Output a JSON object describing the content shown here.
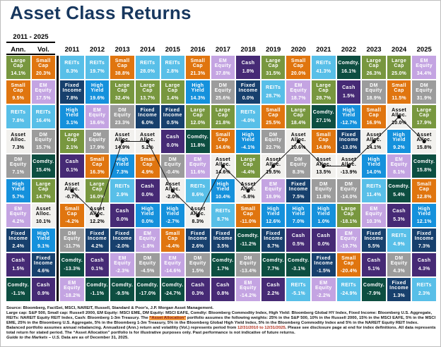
{
  "title": "Asset Class Returns",
  "chart_data": {
    "type": "table",
    "subtype": "asset-return-quilt",
    "period_header": "2011 - 2025",
    "columns": [
      "Ann.",
      "Vol.",
      "2011",
      "2012",
      "2013",
      "2014",
      "2015",
      "2016",
      "2017",
      "2018",
      "2019",
      "2020",
      "2021",
      "2022",
      "2023",
      "2024",
      "2025"
    ],
    "asset_colors": {
      "Large Cap": "#78973f",
      "Small Cap": "#e0750f",
      "REITs": "#58bfe8",
      "High Yield": "#1591dc",
      "EM Equity": "#c4a4e2",
      "DM Equity": "#9c9c9c",
      "Fixed Income": "#17406d",
      "Cash": "#462a75",
      "Comdty.": "#0d4e41",
      "Asset Alloc.": "#f2f1ee"
    },
    "asset_label_lines": {
      "Large Cap": [
        "Large",
        "Cap"
      ],
      "Small Cap": [
        "Small",
        "Cap"
      ],
      "REITs": [
        "REITs"
      ],
      "High Yield": [
        "High",
        "Yield"
      ],
      "EM Equity": [
        "EM",
        "Equity"
      ],
      "DM Equity": [
        "DM",
        "Equity"
      ],
      "Fixed Income": [
        "Fixed",
        "Income"
      ],
      "Cash": [
        "Cash"
      ],
      "Comdty.": [
        "Comdty."
      ],
      "Asset Alloc.": [
        "Asset",
        "Alloc."
      ]
    },
    "cells": [
      {
        "column": "Ann.",
        "entries": [
          {
            "asset": "Large Cap",
            "value": "14.1%"
          },
          {
            "asset": "Small Cap",
            "value": "9.5%"
          },
          {
            "asset": "REITs",
            "value": "7.8%"
          },
          {
            "asset": "Asset Alloc.",
            "value": "7.3%"
          },
          {
            "asset": "DM Equity",
            "value": "7.1%"
          },
          {
            "asset": "High Yield",
            "value": "5.7%"
          },
          {
            "asset": "EM Equity",
            "value": "4.2%"
          },
          {
            "asset": "Fixed Income",
            "value": "2.4%"
          },
          {
            "asset": "Cash",
            "value": "1.5%"
          },
          {
            "asset": "Comdty.",
            "value": "-1.1%"
          }
        ]
      },
      {
        "column": "Vol.",
        "entries": [
          {
            "asset": "Small Cap",
            "value": "20.3%"
          },
          {
            "asset": "EM Equity",
            "value": "17.5%"
          },
          {
            "asset": "REITs",
            "value": "16.4%"
          },
          {
            "asset": "DM Equity",
            "value": "15.7%"
          },
          {
            "asset": "Comdty.",
            "value": "15.4%"
          },
          {
            "asset": "Large Cap",
            "value": "14.7%"
          },
          {
            "asset": "Asset Alloc.",
            "value": "10.1%"
          },
          {
            "asset": "High Yield",
            "value": "9.1%"
          },
          {
            "asset": "Fixed Income",
            "value": "4.6%"
          },
          {
            "asset": "Cash",
            "value": "0.9%"
          }
        ]
      },
      {
        "column": "2011",
        "entries": [
          {
            "asset": "REITs",
            "value": "8.3%"
          },
          {
            "asset": "Fixed Income",
            "value": "7.8%"
          },
          {
            "asset": "High Yield",
            "value": "3.1%"
          },
          {
            "asset": "Large Cap",
            "value": "2.1%"
          },
          {
            "asset": "Cash",
            "value": "0.1%"
          },
          {
            "asset": "Asset Alloc.",
            "value": "-0.7%"
          },
          {
            "asset": "Small Cap",
            "value": "-4.2%"
          },
          {
            "asset": "DM Equity",
            "value": "-11.7%"
          },
          {
            "asset": "Comdty.",
            "value": "-13.3%"
          },
          {
            "asset": "EM Equity",
            "value": "-18.2%"
          }
        ]
      },
      {
        "column": "2012",
        "entries": [
          {
            "asset": "REITs",
            "value": "19.7%"
          },
          {
            "asset": "High Yield",
            "value": "19.6%"
          },
          {
            "asset": "EM Equity",
            "value": "18.6%"
          },
          {
            "asset": "DM Equity",
            "value": "17.9%"
          },
          {
            "asset": "Small Cap",
            "value": "16.3%"
          },
          {
            "asset": "Large Cap",
            "value": "16.0%"
          },
          {
            "asset": "Asset Alloc.",
            "value": "12.2%"
          },
          {
            "asset": "Fixed Income",
            "value": "4.2%"
          },
          {
            "asset": "Cash",
            "value": "0.1%"
          },
          {
            "asset": "Comdty.",
            "value": "-1.1%"
          }
        ]
      },
      {
        "column": "2013",
        "entries": [
          {
            "asset": "Small Cap",
            "value": "38.8%"
          },
          {
            "asset": "Large Cap",
            "value": "32.4%"
          },
          {
            "asset": "DM Equity",
            "value": "23.3%"
          },
          {
            "asset": "Asset Alloc.",
            "value": "14.9%"
          },
          {
            "asset": "High Yield",
            "value": "7.3%"
          },
          {
            "asset": "REITs",
            "value": "2.9%"
          },
          {
            "asset": "Cash",
            "value": "0.0%"
          },
          {
            "asset": "Fixed Income",
            "value": "-2.0%"
          },
          {
            "asset": "EM Equity",
            "value": "-2.3%"
          },
          {
            "asset": "Comdty.",
            "value": "-9.5%"
          }
        ]
      },
      {
        "column": "2014",
        "entries": [
          {
            "asset": "REITs",
            "value": "28.0%"
          },
          {
            "asset": "Large Cap",
            "value": "13.7%"
          },
          {
            "asset": "Fixed Income",
            "value": "6.0%"
          },
          {
            "asset": "Asset Alloc.",
            "value": "5.2%"
          },
          {
            "asset": "Small Cap",
            "value": "4.9%"
          },
          {
            "asset": "Cash",
            "value": "0.0%"
          },
          {
            "asset": "High Yield",
            "value": "0.0%"
          },
          {
            "asset": "EM Equity",
            "value": "-1.8%"
          },
          {
            "asset": "DM Equity",
            "value": "-4.5%"
          },
          {
            "asset": "Comdty.",
            "value": "-17.0%"
          }
        ]
      },
      {
        "column": "2015",
        "entries": [
          {
            "asset": "REITs",
            "value": "2.8%"
          },
          {
            "asset": "Large Cap",
            "value": "1.4%"
          },
          {
            "asset": "Fixed Income",
            "value": "0.5%"
          },
          {
            "asset": "Cash",
            "value": "0.0%"
          },
          {
            "asset": "DM Equity",
            "value": "-0.4%"
          },
          {
            "asset": "Asset Alloc.",
            "value": "-2.0%"
          },
          {
            "asset": "High Yield",
            "value": "-2.7%"
          },
          {
            "asset": "Small Cap",
            "value": "-4.4%"
          },
          {
            "asset": "EM Equity",
            "value": "-14.6%"
          },
          {
            "asset": "Comdty.",
            "value": "-24.7%"
          }
        ]
      },
      {
        "column": "2016",
        "entries": [
          {
            "asset": "Small Cap",
            "value": "21.3%"
          },
          {
            "asset": "High Yield",
            "value": "14.3%"
          },
          {
            "asset": "Large Cap",
            "value": "12.0%"
          },
          {
            "asset": "Comdty.",
            "value": "11.8%"
          },
          {
            "asset": "EM Equity",
            "value": "11.6%"
          },
          {
            "asset": "REITs",
            "value": "8.6%"
          },
          {
            "asset": "Asset Alloc.",
            "value": "8.3%"
          },
          {
            "asset": "Fixed Income",
            "value": "2.6%"
          },
          {
            "asset": "DM Equity",
            "value": "1.5%"
          },
          {
            "asset": "Cash",
            "value": "0.3%"
          }
        ]
      },
      {
        "column": "2017",
        "entries": [
          {
            "asset": "EM Equity",
            "value": "37.8%"
          },
          {
            "asset": "DM Equity",
            "value": "25.6%"
          },
          {
            "asset": "Large Cap",
            "value": "21.8%"
          },
          {
            "asset": "Small Cap",
            "value": "14.6%"
          },
          {
            "asset": "Asset Alloc.",
            "value": "14.6%"
          },
          {
            "asset": "High Yield",
            "value": "10.4%"
          },
          {
            "asset": "REITs",
            "value": "8.7%"
          },
          {
            "asset": "Fixed Income",
            "value": "3.5%"
          },
          {
            "asset": "Comdty.",
            "value": "1.7%"
          },
          {
            "asset": "Cash",
            "value": "0.8%"
          }
        ]
      },
      {
        "column": "2018",
        "entries": [
          {
            "asset": "Cash",
            "value": "1.8%"
          },
          {
            "asset": "Fixed Income",
            "value": "0.0%"
          },
          {
            "asset": "REITs",
            "value": "-4.0%"
          },
          {
            "asset": "High Yield",
            "value": "-4.1%"
          },
          {
            "asset": "Large Cap",
            "value": "-4.4%"
          },
          {
            "asset": "Asset Alloc.",
            "value": "-5.8%"
          },
          {
            "asset": "Small Cap",
            "value": "-11.0%"
          },
          {
            "asset": "Comdty.",
            "value": "-11.2%"
          },
          {
            "asset": "DM Equity",
            "value": "-13.4%"
          },
          {
            "asset": "EM Equity",
            "value": "-14.2%"
          }
        ]
      },
      {
        "column": "2019",
        "entries": [
          {
            "asset": "Large Cap",
            "value": "31.5%"
          },
          {
            "asset": "REITs",
            "value": "28.7%"
          },
          {
            "asset": "Small Cap",
            "value": "25.5%"
          },
          {
            "asset": "DM Equity",
            "value": "22.7%"
          },
          {
            "asset": "Asset Alloc.",
            "value": "19.5%"
          },
          {
            "asset": "EM Equity",
            "value": "18.9%"
          },
          {
            "asset": "High Yield",
            "value": "12.6%"
          },
          {
            "asset": "Fixed Income",
            "value": "8.7%"
          },
          {
            "asset": "Comdty.",
            "value": "7.7%"
          },
          {
            "asset": "Cash",
            "value": "2.2%"
          }
        ]
      },
      {
        "column": "2020",
        "entries": [
          {
            "asset": "Small Cap",
            "value": "20.0%"
          },
          {
            "asset": "EM Equity",
            "value": "18.7%"
          },
          {
            "asset": "Large Cap",
            "value": "18.4%"
          },
          {
            "asset": "Asset Alloc.",
            "value": "10.6%"
          },
          {
            "asset": "DM Equity",
            "value": "8.3%"
          },
          {
            "asset": "Fixed Income",
            "value": "7.5%"
          },
          {
            "asset": "High Yield",
            "value": "7.0%"
          },
          {
            "asset": "Cash",
            "value": "0.5%"
          },
          {
            "asset": "Comdty.",
            "value": "-3.1%"
          },
          {
            "asset": "REITs",
            "value": "-5.1%"
          }
        ]
      },
      {
        "column": "2021",
        "entries": [
          {
            "asset": "REITs",
            "value": "41.3%"
          },
          {
            "asset": "Large Cap",
            "value": "28.7%"
          },
          {
            "asset": "Comdty.",
            "value": "27.1%"
          },
          {
            "asset": "Small Cap",
            "value": "14.8%"
          },
          {
            "asset": "Asset Alloc.",
            "value": "13.5%"
          },
          {
            "asset": "DM Equity",
            "value": "11.8%"
          },
          {
            "asset": "High Yield",
            "value": "1.0%"
          },
          {
            "asset": "Cash",
            "value": "0.0%"
          },
          {
            "asset": "Fixed Income",
            "value": "-1.5%"
          },
          {
            "asset": "EM Equity",
            "value": "-2.2%"
          }
        ]
      },
      {
        "column": "2022",
        "entries": [
          {
            "asset": "Comdty.",
            "value": "16.1%"
          },
          {
            "asset": "Cash",
            "value": "1.5%"
          },
          {
            "asset": "High Yield",
            "value": "-12.7%"
          },
          {
            "asset": "Fixed Income",
            "value": "-13.0%"
          },
          {
            "asset": "Asset Alloc.",
            "value": "-13.9%"
          },
          {
            "asset": "DM Equity",
            "value": "-14.0%"
          },
          {
            "asset": "Large Cap",
            "value": "-18.1%"
          },
          {
            "asset": "EM Equity",
            "value": "-19.7%"
          },
          {
            "asset": "Small Cap",
            "value": "-20.4%"
          },
          {
            "asset": "REITs",
            "value": "-24.9%"
          }
        ]
      },
      {
        "column": "2023",
        "entries": [
          {
            "asset": "Large Cap",
            "value": "26.3%"
          },
          {
            "asset": "DM Equity",
            "value": "18.9%"
          },
          {
            "asset": "Small Cap",
            "value": "16.9%"
          },
          {
            "asset": "Asset Alloc.",
            "value": "14.1%"
          },
          {
            "asset": "High Yield",
            "value": "14.0%"
          },
          {
            "asset": "REITs",
            "value": "11.4%"
          },
          {
            "asset": "EM Equity",
            "value": "10.3%"
          },
          {
            "asset": "Fixed Income",
            "value": "5.5%"
          },
          {
            "asset": "Cash",
            "value": "5.1%"
          },
          {
            "asset": "Comdty.",
            "value": "-7.9%"
          }
        ]
      },
      {
        "column": "2024",
        "entries": [
          {
            "asset": "Large Cap",
            "value": "25.0%"
          },
          {
            "asset": "Small Cap",
            "value": "11.5%"
          },
          {
            "asset": "Asset Alloc.",
            "value": "10.0%"
          },
          {
            "asset": "High Yield",
            "value": "9.2%"
          },
          {
            "asset": "EM Equity",
            "value": "8.1%"
          },
          {
            "asset": "Comdty.",
            "value": "5.4%"
          },
          {
            "asset": "Cash",
            "value": "5.3%"
          },
          {
            "asset": "REITs",
            "value": "4.9%"
          },
          {
            "asset": "DM Equity",
            "value": "4.3%"
          },
          {
            "asset": "Fixed Income",
            "value": "1.3%"
          }
        ]
      },
      {
        "column": "2025",
        "entries": [
          {
            "asset": "EM Equity",
            "value": "34.4%"
          },
          {
            "asset": "DM Equity",
            "value": "31.9%"
          },
          {
            "asset": "Large Cap",
            "value": "17.9%"
          },
          {
            "asset": "Asset Alloc.",
            "value": "15.8%"
          },
          {
            "asset": "Comdty.",
            "value": "15.8%"
          },
          {
            "asset": "Small Cap",
            "value": "12.8%"
          },
          {
            "asset": "High Yield",
            "value": "12.1%"
          },
          {
            "asset": "Fixed Income",
            "value": "7.3%"
          },
          {
            "asset": "Cash",
            "value": "4.3%"
          },
          {
            "asset": "REITs",
            "value": "2.3%"
          }
        ]
      }
    ],
    "trendline": {
      "connects": "Asset Alloc. cells across year columns",
      "color": "#1a1a1a"
    }
  },
  "footer": {
    "line1": "Source: Bloomberg, FactSet, MSCI, NAREIT, Russell, Standard & Poor's, J.P. Morgan Asset Management.",
    "para2_a": "Large cap: S&P 500, Small cap: Russell 2000, EM Equity: MSCI EME, DM Equity: MSCI EAFE, Comdty: Bloomberg Commodity Index, High Yield: Bloomberg Global HY Index, Fixed Income: Bloomberg U.S. Aggregate, REITs: NAREIT Equity REIT Index, Cash: Bloomberg 1-3m Treasury. The ",
    "para2_highlight": "“Asset Allocation”",
    "para2_b": " portfolio assumes the following weights: 25% in the S&P 500, 10% in the Russell 2000, 15% in the MSCI EAFE, 5% in the MSCI EME, 25% in the Bloomberg U.S. Aggregate, 5% in the Bloomberg 1-3m Treasury, 5% in the Bloomberg Global High Yield Index, 5% in the Bloomberg Commodity Index and 5% in the NAREIT Equity REIT Index. Balanced portfolio assumes annual rebalancing. Annualized (Ann.) return and volatility (Vol.) represents period from ",
    "para2_dates": "12/31/2010 to 12/31/2025",
    "para2_c": ". Please see disclosure page at end for index definitions. All data represents total return for stated period. The “Asset Allocation” portfolio is for illustrative purposes only. Past performance is not indicative of future returns.",
    "line3_italic": "Guide to the Markets – U.S.",
    "line3_rest": " Data are as of December 31, 2025."
  }
}
